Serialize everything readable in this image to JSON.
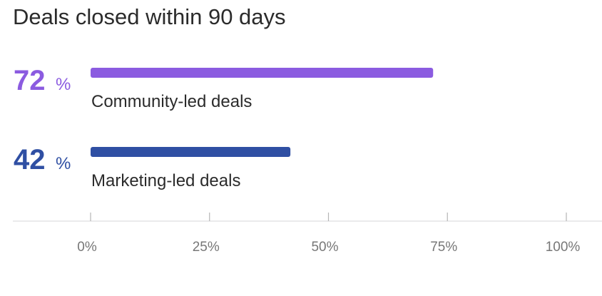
{
  "chart_data": {
    "type": "bar",
    "orientation": "horizontal",
    "title": "Deals closed within 90 days",
    "categories": [
      "Community-led deals",
      "Marketing-led deals"
    ],
    "values": [
      72,
      42
    ],
    "value_labels": [
      "72",
      "42"
    ],
    "value_suffix": "%",
    "colors": [
      "#8b5be0",
      "#2f4fa3"
    ],
    "xlim": [
      0,
      100
    ],
    "ticks": [
      0,
      25,
      50,
      75,
      100
    ],
    "tick_labels": [
      "0%",
      "25%",
      "50%",
      "75%",
      "100%"
    ],
    "grid": false,
    "legend": "none"
  }
}
